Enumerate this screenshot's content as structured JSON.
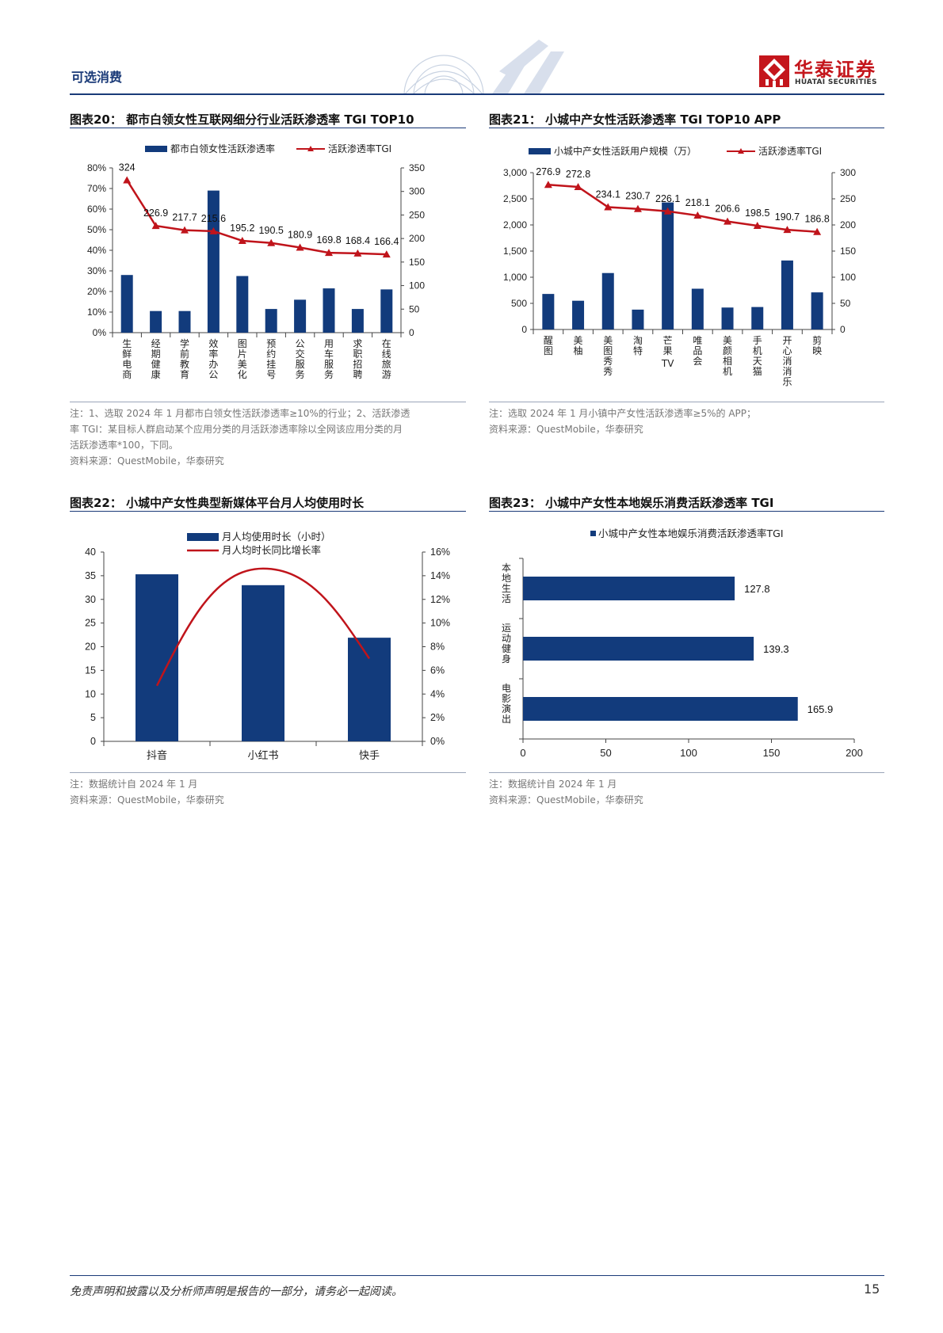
{
  "header": {
    "section": "可选消费",
    "logo_cn": "华泰证券",
    "logo_en": "HUATAI SECURITIES"
  },
  "figures": [
    {
      "id": "fig20",
      "title": "图表20：  都市白领女性互联网细分行业活跃渗透率 TGI TOP10",
      "notes": [
        "注：1、选取 2024 年 1 月都市白领女性活跃渗透率≥10%的行业；2、活跃渗透",
        "率 TGI：某目标人群启动某个应用分类的月活跃渗透率除以全网该应用分类的月",
        "活跃渗透率*100，下同。",
        "资料来源：QuestMobile，华泰研究"
      ]
    },
    {
      "id": "fig21",
      "title": "图表21：  小城中产女性活跃渗透率 TGI TOP10 APP",
      "notes": [
        "注：选取 2024 年 1 月小镇中产女性活跃渗透率≥5%的 APP；",
        "资料来源：QuestMobile，华泰研究"
      ]
    },
    {
      "id": "fig22",
      "title": "图表22：  小城中产女性典型新媒体平台月人均使用时长",
      "notes": [
        "注：数据统计自 2024 年 1 月",
        "资料来源：QuestMobile，华泰研究"
      ]
    },
    {
      "id": "fig23",
      "title": "图表23：  小城中产女性本地娱乐消费活跃渗透率 TGI",
      "notes": [
        "注：数据统计自 2024 年 1 月",
        "资料来源：QuestMobile，华泰研究"
      ]
    }
  ],
  "chart_data": [
    {
      "type": "bar",
      "categories": [
        "生鲜电商",
        "经期健康",
        "学前教育",
        "效率办公",
        "图片美化",
        "预约挂号",
        "公交服务",
        "用车服务",
        "求职招聘",
        "在线旅游"
      ],
      "series": [
        {
          "name": "都市白领女性活跃渗透率",
          "type": "bar",
          "axis": "left",
          "values": [
            28,
            10.5,
            10.5,
            69,
            27.5,
            11.5,
            16,
            21.5,
            11.5,
            21
          ]
        },
        {
          "name": "活跃渗透率TGI",
          "type": "line",
          "axis": "right",
          "values": [
            324,
            226.9,
            217.7,
            215.6,
            195.2,
            190.5,
            180.9,
            169.8,
            168.4,
            166.4
          ],
          "labels": [
            "324",
            "226.9",
            "217.7",
            "215.6",
            "195.2",
            "190.5",
            "180.9",
            "169.8",
            "168.4",
            "166.4"
          ]
        }
      ],
      "y_left": {
        "min": 0,
        "max": 80,
        "ticks": [
          "0%",
          "10%",
          "20%",
          "30%",
          "40%",
          "50%",
          "60%",
          "70%",
          "80%"
        ]
      },
      "y_right": {
        "min": 0,
        "max": 350,
        "ticks": [
          "0",
          "50",
          "100",
          "150",
          "200",
          "250",
          "300",
          "350"
        ]
      }
    },
    {
      "type": "bar",
      "categories": [
        "醒图",
        "美柚",
        "美图秀秀",
        "淘特",
        "芒果TV",
        "唯品会",
        "美颜相机",
        "手机天猫",
        "开心消消乐",
        "剪映"
      ],
      "series": [
        {
          "name": "小城中产女性活跃用户规模（万）",
          "type": "bar",
          "axis": "left",
          "values": [
            680,
            550,
            1080,
            380,
            2430,
            780,
            420,
            430,
            1320,
            710
          ]
        },
        {
          "name": "活跃渗透率TGI",
          "type": "line",
          "axis": "right",
          "values": [
            276.9,
            272.8,
            234.1,
            230.7,
            226.1,
            218.1,
            206.6,
            198.5,
            190.7,
            186.8
          ],
          "labels": [
            "276.9",
            "272.8",
            "234.1",
            "230.7",
            "226.1",
            "218.1",
            "206.6",
            "198.5",
            "190.7",
            "186.8"
          ]
        }
      ],
      "y_left": {
        "min": 0,
        "max": 3000,
        "ticks": [
          "0",
          "500",
          "1,000",
          "1,500",
          "2,000",
          "2,500",
          "3,000"
        ]
      },
      "y_right": {
        "min": 0,
        "max": 300,
        "ticks": [
          "0",
          "50",
          "100",
          "150",
          "200",
          "250",
          "300"
        ]
      }
    },
    {
      "type": "bar",
      "categories": [
        "抖音",
        "小红书",
        "快手"
      ],
      "series": [
        {
          "name": "月人均使用时长（小时）",
          "type": "bar",
          "axis": "left",
          "values": [
            35.3,
            33.0,
            21.9
          ]
        },
        {
          "name": "月人均时长同比增长率",
          "type": "line",
          "axis": "right",
          "values": [
            4.7,
            14.6,
            7.0
          ]
        }
      ],
      "y_left": {
        "min": 0,
        "max": 40,
        "ticks": [
          "0",
          "5",
          "10",
          "15",
          "20",
          "25",
          "30",
          "35",
          "40"
        ]
      },
      "y_right": {
        "min": 0,
        "max": 16,
        "ticks": [
          "0%",
          "2%",
          "4%",
          "6%",
          "8%",
          "10%",
          "12%",
          "14%",
          "16%"
        ]
      }
    },
    {
      "type": "bar",
      "orientation": "horizontal",
      "categories": [
        "本地生活",
        "运动健身",
        "电影演出"
      ],
      "series": [
        {
          "name": "小城中产女性本地娱乐消费活跃渗透率TGI",
          "values": [
            127.8,
            139.3,
            165.9
          ],
          "labels": [
            "127.8",
            "139.3",
            "165.9"
          ]
        }
      ],
      "x_axis": {
        "min": 0,
        "max": 200,
        "ticks": [
          "0",
          "50",
          "100",
          "150",
          "200"
        ]
      }
    }
  ],
  "colors": {
    "bar": "#123b7c",
    "line": "#c0141b",
    "brand": "#c4161c",
    "header": "#1a3a78"
  },
  "footer": {
    "disclaimer": "免责声明和披露以及分析师声明是报告的一部分，请务必一起阅读。",
    "page": "15"
  }
}
